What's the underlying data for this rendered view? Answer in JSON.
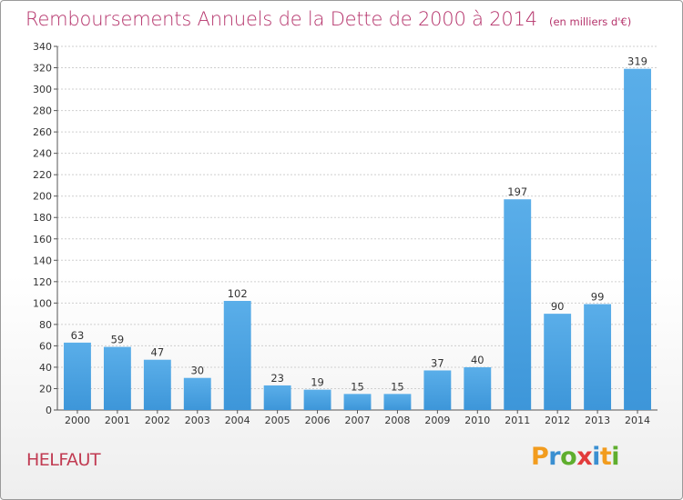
{
  "chart_data": {
    "type": "bar",
    "title": "Remboursements Annuels de la Dette de 2000 à 2014",
    "unit_note": "(en milliers d'€)",
    "categories": [
      "2000",
      "2001",
      "2002",
      "2003",
      "2004",
      "2005",
      "2006",
      "2007",
      "2008",
      "2009",
      "2010",
      "2011",
      "2012",
      "2013",
      "2014"
    ],
    "values": [
      63,
      59,
      47,
      30,
      102,
      23,
      19,
      15,
      15,
      37,
      40,
      197,
      90,
      99,
      319
    ],
    "ylim": [
      0,
      340
    ],
    "ytick_step": 20,
    "grid": true,
    "bar_color": "#3d96d9",
    "xlabel": "",
    "ylabel": ""
  },
  "location": "HELFAUT",
  "logo": {
    "letters": [
      "P",
      "r",
      "o",
      "x",
      "i",
      "t",
      "i"
    ],
    "colors": [
      "#f29c1e",
      "#3a8fd1",
      "#5fae2e",
      "#e23b3b",
      "#3a8fd1",
      "#f29c1e",
      "#5fae2e"
    ]
  }
}
